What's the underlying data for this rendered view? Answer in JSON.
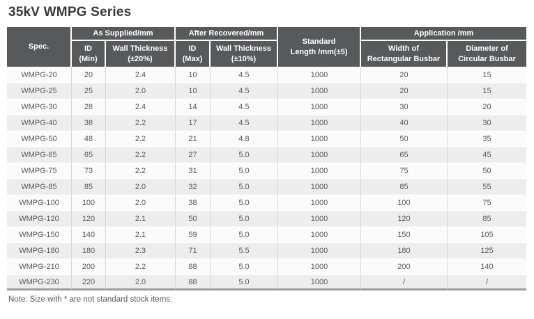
{
  "page": {
    "title": "35kV WMPG Series",
    "note": "Note: Size with * are not standard stock items."
  },
  "table": {
    "header": {
      "spec": "Spec.",
      "as_supplied": "As Supplied/mm",
      "after_recovered": "After Recovered/mm",
      "standard_length": "Standard\nLength /mm(±5)",
      "application": "Application /mm",
      "id_min": "ID\n(Min)",
      "wall_20": "Wall Thickness\n(±20%)",
      "id_max": "ID\n(Max)",
      "wall_10": "Wall Thickness\n(±10%)",
      "width_rect": "Width of\nRectangular Busbar",
      "diam_circ": "Diameter of\nCircular Busbar"
    },
    "rows": [
      [
        "WMPG-20",
        "20",
        "2.4",
        "10",
        "4.5",
        "1000",
        "20",
        "15"
      ],
      [
        "WMPG-25",
        "25",
        "2.0",
        "10",
        "4.5",
        "1000",
        "20",
        "15"
      ],
      [
        "WMPG-30",
        "28",
        "2.4",
        "14",
        "4.5",
        "1000",
        "30",
        "20"
      ],
      [
        "WMPG-40",
        "38",
        "2.2",
        "17",
        "4.5",
        "1000",
        "40",
        "30"
      ],
      [
        "WMPG-50",
        "48",
        "2.2",
        "21",
        "4.8",
        "1000",
        "50",
        "35"
      ],
      [
        "WMPG-65",
        "65",
        "2.2",
        "27",
        "5.0",
        "1000",
        "65",
        "45"
      ],
      [
        "WMPG-75",
        "73",
        "2.2",
        "31",
        "5.0",
        "1000",
        "75",
        "50"
      ],
      [
        "WMPG-85",
        "85",
        "2.0",
        "32",
        "5.0",
        "1000",
        "85",
        "55"
      ],
      [
        "WMPG-100",
        "100",
        "2.0",
        "38",
        "5.0",
        "1000",
        "100",
        "75"
      ],
      [
        "WMPG-120",
        "120",
        "2.1",
        "50",
        "5.0",
        "1000",
        "120",
        "85"
      ],
      [
        "WMPG-150",
        "140",
        "2.1",
        "59",
        "5.0",
        "1000",
        "150",
        "105"
      ],
      [
        "WMPG-180",
        "180",
        "2.3",
        "71",
        "5.5",
        "1000",
        "180",
        "125"
      ],
      [
        "WMPG-210",
        "200",
        "2.2",
        "88",
        "5.0",
        "1000",
        "200",
        "140"
      ],
      [
        "WMPG-230",
        "220",
        "2.0",
        "88",
        "5.0",
        "1000",
        "/",
        "/"
      ]
    ],
    "colors": {
      "header_bg": "#58595b",
      "header_text": "#ffffff",
      "row_odd_bg": "#fbfbfb",
      "row_even_bg": "#ededed",
      "cell_text": "#595757",
      "cell_border": "#d6d6d6",
      "bottom_border": "#9c9c9c"
    }
  }
}
